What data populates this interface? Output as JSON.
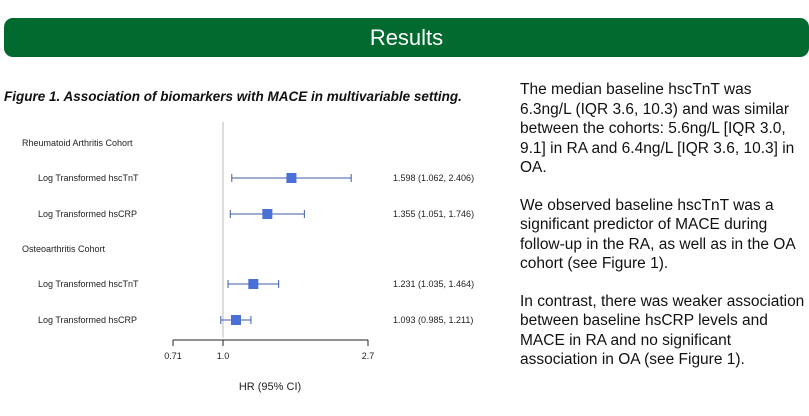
{
  "header": {
    "title": "Results",
    "banner_color": "#006a2f"
  },
  "figure": {
    "caption": "Figure 1. Association of biomarkers with MACE in multivariable setting."
  },
  "chart_data": {
    "type": "forest",
    "xlabel": "HR (95% CI)",
    "x_ticks": [
      0.71,
      1.0,
      2.7
    ],
    "x_tick_labels": [
      "0.71",
      "1.0",
      "2.7"
    ],
    "reference_line": 1.0,
    "x_scale": "log",
    "marker_color": "#4a6fd6",
    "groups": [
      {
        "name": "Rheumatoid Arthritis Cohort",
        "rows": [
          {
            "label": "Log Transformed hscTnT",
            "hr": 1.598,
            "lower": 1.062,
            "upper": 2.406,
            "text": "1.598 (1.062, 2.406)"
          },
          {
            "label": "Log Transformed hsCRP",
            "hr": 1.355,
            "lower": 1.051,
            "upper": 1.746,
            "text": "1.355 (1.051, 1.746)"
          }
        ]
      },
      {
        "name": "Osteoarthritis Cohort",
        "rows": [
          {
            "label": "Log Transformed hscTnT",
            "hr": 1.231,
            "lower": 1.035,
            "upper": 1.464,
            "text": "1.231 (1.035, 1.464)"
          },
          {
            "label": "Log Transformed hsCRP",
            "hr": 1.093,
            "lower": 0.985,
            "upper": 1.211,
            "text": "1.093 (0.985, 1.211)"
          }
        ]
      }
    ]
  },
  "text_panel": {
    "paragraphs": [
      "The median baseline hscTnT was 6.3ng/L (IQR 3.6, 10.3) and was similar between the cohorts: 5.6ng/L [IQR 3.0, 9.1] in RA and 6.4ng/L [IQR 3.6, 10.3] in OA.",
      "We observed baseline hscTnT was a significant predictor of MACE during follow-up in the RA, as well as in the OA cohort (see Figure 1).",
      "In contrast, there was weaker association between baseline hsCRP levels and MACE in RA and no significant association in OA (see Figure 1)."
    ]
  }
}
